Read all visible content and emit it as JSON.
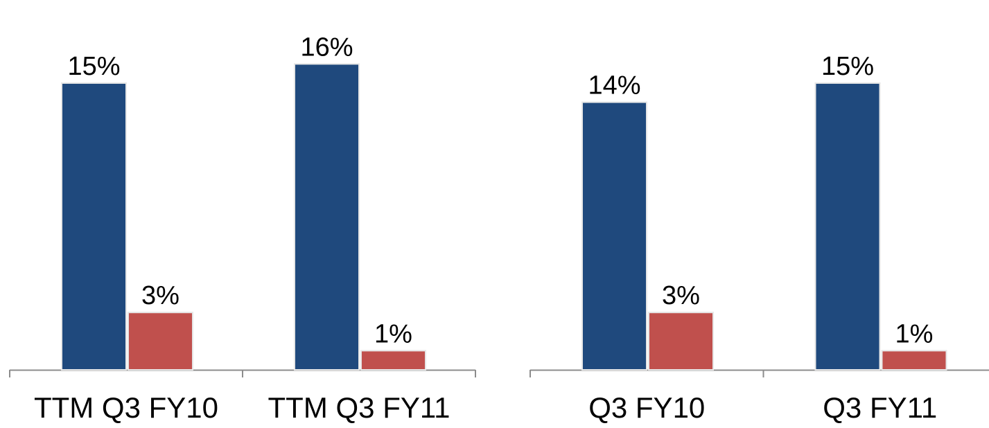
{
  "chart_data": [
    {
      "type": "bar",
      "categories": [
        "TTM Q3 FY10",
        "TTM Q3 FY11"
      ],
      "series": [
        {
          "values": [
            15,
            16
          ],
          "labels": [
            "15%",
            "16%"
          ]
        },
        {
          "values": [
            3,
            1
          ],
          "labels": [
            "3%",
            "1%"
          ]
        }
      ],
      "ylim": [
        0,
        16
      ],
      "grid": false,
      "legend": "none"
    },
    {
      "type": "bar",
      "categories": [
        "Q3 FY10",
        "Q3 FY11"
      ],
      "series": [
        {
          "values": [
            14,
            15
          ],
          "labels": [
            "14%",
            "15%"
          ]
        },
        {
          "values": [
            3,
            1
          ],
          "labels": [
            "3%",
            "1%"
          ]
        }
      ],
      "ylim": [
        0,
        16
      ],
      "grid": false,
      "legend": "none"
    }
  ],
  "colors": {
    "series_1": "#1F497D",
    "series_2": "#C0504D",
    "axis": "#8C8C8C"
  }
}
